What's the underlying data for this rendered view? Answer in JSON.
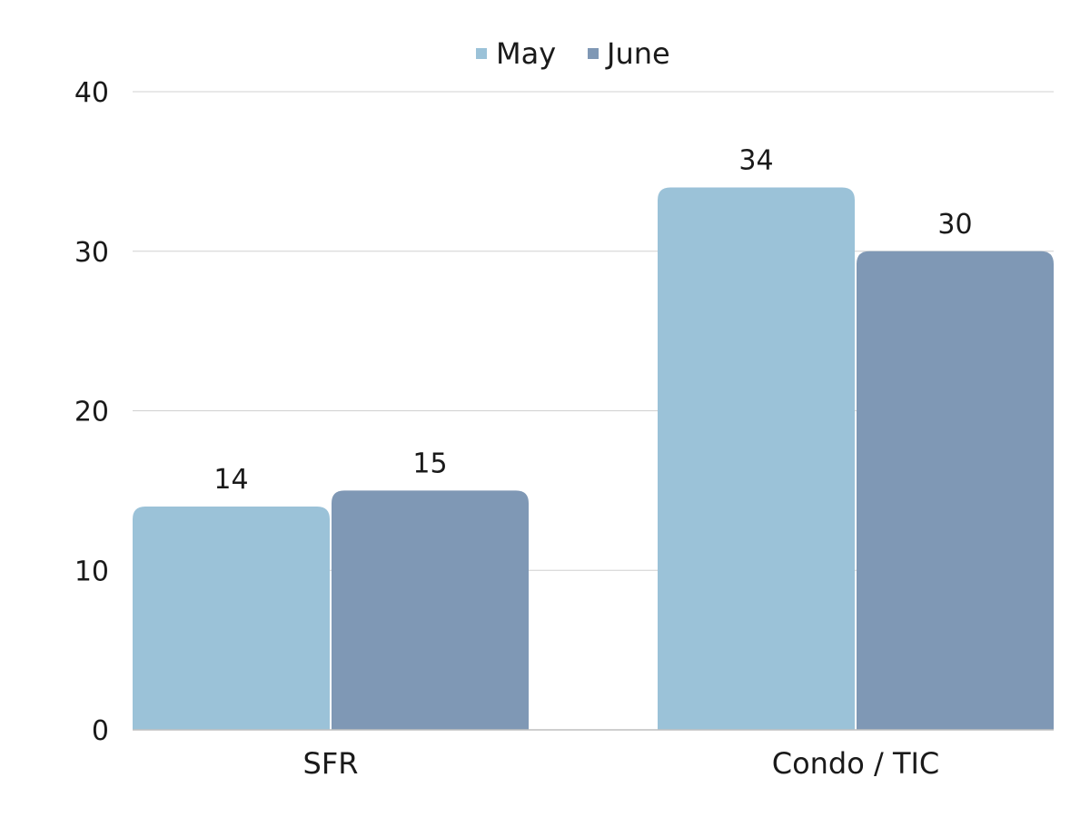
{
  "chart_data": {
    "type": "bar",
    "categories": [
      "SFR",
      "Condo / TIC"
    ],
    "series": [
      {
        "name": "May",
        "values": [
          14,
          34
        ],
        "color": "#9bc2d8"
      },
      {
        "name": "June",
        "values": [
          15,
          30
        ],
        "color": "#7f98b5"
      }
    ],
    "ylim": [
      0,
      40
    ],
    "yticks": [
      0,
      10,
      20,
      30,
      40
    ],
    "grid": true,
    "legend_position": "top-center",
    "title": "",
    "xlabel": "",
    "ylabel": ""
  }
}
